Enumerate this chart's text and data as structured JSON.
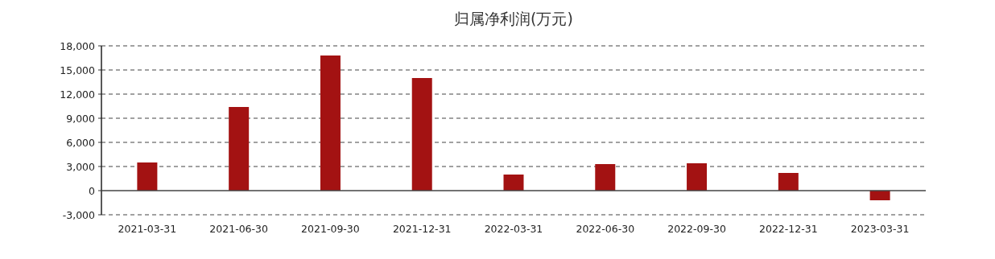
{
  "chart_data": {
    "type": "bar",
    "title": "归属净利润(万元)",
    "categories": [
      "2021-03-31",
      "2021-06-30",
      "2021-09-30",
      "2021-12-31",
      "2022-03-31",
      "2022-06-30",
      "2022-09-30",
      "2022-12-31",
      "2023-03-31"
    ],
    "values": [
      3500,
      10400,
      16800,
      14000,
      2000,
      3300,
      3400,
      2200,
      -1200
    ],
    "color": "#a31212",
    "ylim": [
      -3000,
      18000
    ],
    "yticks": [
      {
        "value": -3000,
        "label": "-3,000"
      },
      {
        "value": 0,
        "label": "0"
      },
      {
        "value": 3000,
        "label": "3,000"
      },
      {
        "value": 6000,
        "label": "6,000"
      },
      {
        "value": 9000,
        "label": "9,000"
      },
      {
        "value": 12000,
        "label": "12,000"
      },
      {
        "value": 15000,
        "label": "15,000"
      },
      {
        "value": 18000,
        "label": "18,000"
      }
    ],
    "grid": "y"
  }
}
